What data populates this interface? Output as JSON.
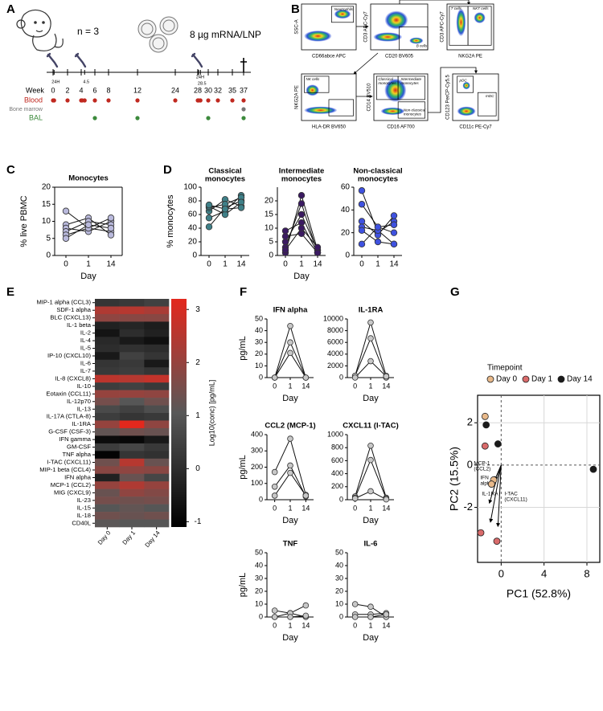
{
  "panel_labels": [
    "A",
    "B",
    "C",
    "D",
    "E",
    "F",
    "G"
  ],
  "timeline": {
    "subject": "n = 3",
    "dose": "8 µg mRNA/LNP",
    "week_label": "Week",
    "weeks": [
      0,
      2,
      4,
      6,
      8,
      12,
      24,
      28,
      30,
      32,
      35,
      37
    ],
    "injections": [
      0,
      4,
      28
    ],
    "notes": [
      {
        "label": "24H",
        "week": 0.14
      },
      {
        "label": "4.5",
        "week": 4.5
      },
      {
        "label": "24H",
        "week": 28.14
      },
      {
        "label": "28.5",
        "week": 28.5
      }
    ],
    "rows": [
      {
        "label": "Blood",
        "color": "#c0281f",
        "weeks": [
          0,
          0.14,
          2,
          4,
          4.14,
          4.5,
          6,
          8,
          12,
          24,
          28,
          28.14,
          28.5,
          30,
          32,
          35,
          37
        ]
      },
      {
        "label": "Bone marrow",
        "color": "#777777",
        "weeks": [
          37
        ]
      },
      {
        "label": "BAL",
        "color": "#3c8a3c",
        "weeks": [
          6,
          12,
          30,
          37
        ]
      }
    ]
  },
  "flow_plots": [
    {
      "x_label": "CD66abce APC",
      "y_label": "SSC-A",
      "gates": [
        [
          "Neutrophils"
        ]
      ]
    },
    {
      "x_label": "CD20 BV605",
      "y_label": "CD3 APC-Cy7",
      "gates": [
        [
          "B cells"
        ]
      ]
    },
    {
      "x_label": "NKG2A PE",
      "y_label": "CD3 APC-Cy7",
      "gates": [
        [
          "T cells"
        ],
        [
          "NKT cells"
        ]
      ]
    },
    {
      "x_label": "HLA-DR BV650",
      "y_label": "NKG2A PE",
      "gates": [
        [
          "NK cells"
        ]
      ]
    },
    {
      "x_label": "CD16 AF700",
      "y_label": "CD14 BV510",
      "gates": [
        [
          "Classical",
          "monocytes"
        ],
        [
          "Intermediate",
          "monocytes"
        ],
        [
          "Non-classical",
          "monocytes"
        ]
      ]
    },
    {
      "x_label": "CD11c PE-Cy7",
      "y_label": "CD123 PerCP-Cy5.5",
      "gates": [
        [
          "pDC"
        ],
        [
          "mDC"
        ]
      ]
    }
  ],
  "chart_data": [
    {
      "type": "line",
      "title": "Monocytes",
      "categories": [
        "0",
        "1",
        "14"
      ],
      "x_label": "Day",
      "y_label": "% live PBMC",
      "ylim": [
        0,
        20
      ],
      "yticks": [
        0,
        5,
        10,
        15,
        20
      ],
      "color": "#b9b9dc",
      "series": [
        {
          "values": [
            13,
            8,
            7
          ]
        },
        {
          "values": [
            9,
            11,
            6
          ]
        },
        {
          "values": [
            8,
            7,
            10
          ]
        },
        {
          "values": [
            7,
            10,
            9
          ]
        },
        {
          "values": [
            6,
            8,
            11
          ]
        },
        {
          "values": [
            5,
            9,
            8
          ]
        }
      ]
    },
    {
      "type": "line",
      "title": [
        "Classical",
        "monocytes"
      ],
      "categories": [
        "0",
        "1",
        "14"
      ],
      "y_label": "% monocytes",
      "ylim": [
        0,
        100
      ],
      "yticks": [
        0,
        20,
        40,
        60,
        80,
        100
      ],
      "color": "#3f8088",
      "series": [
        {
          "values": [
            42,
            70,
            80
          ]
        },
        {
          "values": [
            55,
            65,
            88
          ]
        },
        {
          "values": [
            65,
            82,
            72
          ]
        },
        {
          "values": [
            70,
            75,
            85
          ]
        },
        {
          "values": [
            72,
            60,
            78
          ]
        },
        {
          "values": [
            74,
            68,
            70
          ]
        }
      ]
    },
    {
      "type": "line",
      "title": [
        "Intermediate",
        "monocytes"
      ],
      "categories": [
        "0",
        "1",
        "14"
      ],
      "x_label": "Day",
      "ylim": [
        0,
        25
      ],
      "yticks": [
        0,
        5,
        10,
        15,
        20
      ],
      "color": "#3b1a62",
      "series": [
        {
          "values": [
            1,
            22,
            2
          ]
        },
        {
          "values": [
            3,
            19,
            1
          ]
        },
        {
          "values": [
            5,
            15,
            2
          ]
        },
        {
          "values": [
            7,
            8,
            1
          ]
        },
        {
          "values": [
            9,
            12,
            1
          ]
        },
        {
          "values": [
            2,
            10,
            3
          ]
        }
      ]
    },
    {
      "type": "line",
      "title": [
        "Non-classical",
        "monocytes"
      ],
      "categories": [
        "0",
        "1",
        "14"
      ],
      "ylim": [
        0,
        60
      ],
      "yticks": [
        0,
        20,
        40,
        60
      ],
      "color": "#3f52e0",
      "series": [
        {
          "values": [
            57,
            20,
            30
          ]
        },
        {
          "values": [
            45,
            25,
            27
          ]
        },
        {
          "values": [
            30,
            18,
            35
          ]
        },
        {
          "values": [
            25,
            22,
            10
          ]
        },
        {
          "values": [
            22,
            12,
            10
          ]
        },
        {
          "values": [
            10,
            25,
            20
          ]
        }
      ]
    },
    {
      "type": "heatmap",
      "rows": [
        "MIP-1 alpha (CCL3)",
        "SDF-1 alpha",
        "BLC (CXCL13)",
        "IL-1 beta",
        "IL-2",
        "IL-4",
        "IL-5",
        "IP-10 (CXCL10)",
        "IL-6",
        "IL-7",
        "IL-8 (CXCL8)",
        "IL-10",
        "Eotaxin (CCL11)",
        "IL-12p70",
        "IL-13",
        "IL-17A (CTLA-8)",
        "IL-1RA",
        "G-CSF (CSF-3)",
        "IFN gamma",
        "GM-CSF",
        "TNF alpha",
        "I-TAC (CXCL11)",
        "MIP-1 beta (CCL4)",
        "IFN alpha",
        "MCP-1 (CCL2)",
        "MIG (CXCL9)",
        "IL-23",
        "IL-15",
        "IL-18",
        "CD40L"
      ],
      "columns": [
        "Day 0",
        "Day 1",
        "Day 14"
      ],
      "values": [
        [
          0.2,
          0.3,
          0.5
        ],
        [
          2.4,
          2.5,
          2.3
        ],
        [
          1.9,
          1.8,
          1.8
        ],
        [
          -0.3,
          -0.2,
          -0.4
        ],
        [
          -0.6,
          0.0,
          -0.3
        ],
        [
          -0.1,
          -0.5,
          -0.7
        ],
        [
          0.0,
          0.1,
          0.0
        ],
        [
          -0.5,
          0.5,
          0.2
        ],
        [
          0.2,
          0.3,
          -0.5
        ],
        [
          0.3,
          0.4,
          0.2
        ],
        [
          2.6,
          2.5,
          2.7
        ],
        [
          0.4,
          0.5,
          0.3
        ],
        [
          2.0,
          2.0,
          1.9
        ],
        [
          1.5,
          1.0,
          1.4
        ],
        [
          0.7,
          0.5,
          0.8
        ],
        [
          0.4,
          0.2,
          0.3
        ],
        [
          2.0,
          3.5,
          1.9
        ],
        [
          1.2,
          1.4,
          1.3
        ],
        [
          -0.8,
          -0.9,
          -0.5
        ],
        [
          0.4,
          0.6,
          0.3
        ],
        [
          -1.0,
          0.2,
          0.1
        ],
        [
          1.4,
          2.5,
          1.3
        ],
        [
          1.8,
          1.9,
          1.8
        ],
        [
          -0.3,
          1.3,
          0.6
        ],
        [
          2.0,
          2.4,
          2.0
        ],
        [
          1.3,
          1.9,
          1.7
        ],
        [
          1.5,
          1.4,
          1.5
        ],
        [
          1.0,
          1.2,
          1.0
        ],
        [
          1.4,
          1.3,
          1.4
        ],
        [
          1.1,
          1.0,
          1.0
        ]
      ],
      "colorbar_lim": [
        -1.1,
        3.2
      ],
      "colorbar_ticks": [
        -1,
        0,
        1,
        2,
        3
      ],
      "colorbar_label": "Log10(conc) [pg/mL]",
      "colors": [
        "#000000",
        "#585858",
        "#e3281d"
      ]
    },
    {
      "type": "line",
      "title": "IFN alpha",
      "categories": [
        "0",
        "1",
        "14"
      ],
      "x_label": "Day",
      "y_label": "pg/mL",
      "ylim": [
        0,
        50
      ],
      "yticks": [
        0,
        10,
        20,
        30,
        40,
        50
      ],
      "color": "#c8c8c8",
      "series": [
        {
          "values": [
            0,
            44,
            0
          ]
        },
        {
          "values": [
            0,
            30,
            0
          ]
        },
        {
          "values": [
            0,
            21,
            0
          ]
        }
      ]
    },
    {
      "type": "line",
      "title": "IL-1RA",
      "categories": [
        "0",
        "1",
        "14"
      ],
      "x_label": "Day",
      "ylim": [
        0,
        10000
      ],
      "yticks": [
        0,
        2000,
        4000,
        6000,
        8000,
        10000
      ],
      "color": "#c8c8c8",
      "series": [
        {
          "values": [
            300,
            9400,
            300
          ]
        },
        {
          "values": [
            300,
            6700,
            0
          ]
        },
        {
          "values": [
            0,
            2800,
            200
          ]
        }
      ]
    },
    {
      "type": "line",
      "title": "CCL2 (MCP-1)",
      "categories": [
        "0",
        "1",
        "14"
      ],
      "x_label": "Day",
      "y_label": "pg/mL",
      "ylim": [
        0,
        400
      ],
      "yticks": [
        0,
        100,
        200,
        300,
        400
      ],
      "color": "#c8c8c8",
      "series": [
        {
          "values": [
            170,
            375,
            30
          ]
        },
        {
          "values": [
            80,
            210,
            20
          ]
        },
        {
          "values": [
            25,
            165,
            25
          ]
        }
      ]
    },
    {
      "type": "line",
      "title": "CXCL11 (I-TAC)",
      "categories": [
        "0",
        "1",
        "14"
      ],
      "x_label": "Day",
      "ylim": [
        0,
        1000
      ],
      "yticks": [
        0,
        200,
        400,
        600,
        800,
        1000
      ],
      "color": "#c8c8c8",
      "series": [
        {
          "values": [
            50,
            830,
            30
          ]
        },
        {
          "values": [
            30,
            610,
            20
          ]
        },
        {
          "values": [
            20,
            130,
            5
          ]
        }
      ]
    },
    {
      "type": "line",
      "title": "TNF",
      "categories": [
        "0",
        "1",
        "14"
      ],
      "x_label": "Day",
      "y_label": "pg/mL",
      "ylim": [
        0,
        50
      ],
      "yticks": [
        0,
        10,
        20,
        30,
        40,
        50
      ],
      "color": "#c8c8c8",
      "series": [
        {
          "values": [
            5,
            3,
            9
          ]
        },
        {
          "values": [
            0,
            3,
            0
          ]
        },
        {
          "values": [
            0,
            0,
            1
          ]
        }
      ]
    },
    {
      "type": "line",
      "title": "IL-6",
      "categories": [
        "0",
        "1",
        "14"
      ],
      "x_label": "Day",
      "ylim": [
        0,
        50
      ],
      "yticks": [
        0,
        10,
        20,
        30,
        40,
        50
      ],
      "color": "#c8c8c8",
      "series": [
        {
          "values": [
            10,
            8,
            0
          ]
        },
        {
          "values": [
            2,
            2,
            3
          ]
        },
        {
          "values": [
            0,
            0,
            2
          ]
        }
      ]
    },
    {
      "type": "scatter",
      "x_label": "PC1 (52.8%)",
      "y_label": "PC2 (15.5%)",
      "legend_title": "Timepoint",
      "xlim": [
        -2.2,
        9.2
      ],
      "ylim": [
        -4.6,
        3.3
      ],
      "xticks": [
        0,
        4,
        8
      ],
      "yticks": [
        -2,
        0,
        2
      ],
      "grid": true,
      "series": [
        {
          "name": "Day 0",
          "color": "#e8b98a",
          "x": [
            -1.5,
            -0.7,
            -0.9
          ],
          "y": [
            2.3,
            -0.7,
            -0.9
          ]
        },
        {
          "name": "Day 1",
          "color": "#d96b6b",
          "x": [
            -1.5,
            -1.9,
            -0.4
          ],
          "y": [
            0.9,
            -3.2,
            -3.6
          ]
        },
        {
          "name": "Day 14",
          "color": "#1a1a1a",
          "x": [
            -1.4,
            -0.3,
            8.6
          ],
          "y": [
            1.9,
            1.0,
            -0.2
          ]
        }
      ],
      "loadings": [
        {
          "label": [
            "MCP-1",
            "(CCL2)"
          ],
          "x": -0.6,
          "y": -0.7
        },
        {
          "label": [
            "IFN",
            "alpha"
          ],
          "x": -1.1,
          "y": -1.8
        },
        {
          "label": [
            "IL-1RA"
          ],
          "x": -1.0,
          "y": -2.7
        },
        {
          "label": [
            "I-TAC",
            "(CXCL11)"
          ],
          "x": -0.3,
          "y": -2.9
        }
      ]
    }
  ]
}
